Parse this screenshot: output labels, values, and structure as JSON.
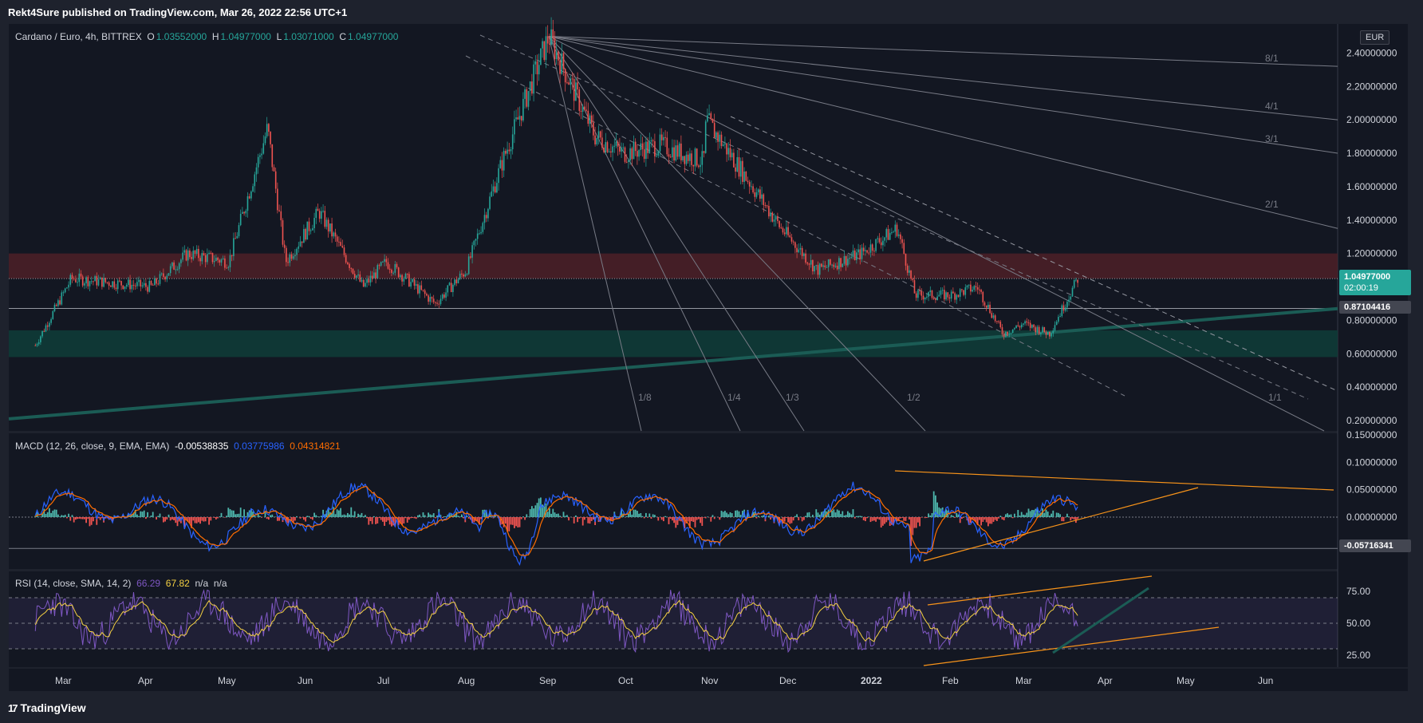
{
  "header": {
    "published_text": "Rekt4Sure published on TradingView.com, Mar 26, 2022 22:56 UTC+1"
  },
  "footer": {
    "logo_text": "TradingView",
    "logo_mark": "17"
  },
  "colors": {
    "background": "#131722",
    "frame": "#1e222d",
    "grid": "#2a2e39",
    "up": "#26a69a",
    "down": "#ef5350",
    "resistance_zone": "#4a1f27",
    "support_zone": "#0f3b37",
    "macd_line": "#2962ff",
    "signal_line": "#ff6d00",
    "rsi_line": "#7e57c2",
    "rsi_ma": "#f5d142",
    "trendline_orange": "#f7931a",
    "long_support_line": "#1b5c55",
    "last_price_tag": "#26a69a"
  },
  "main_legend": {
    "symbol": "Cardano / Euro, 4h, BITTREX",
    "o_label": "O",
    "o_value": "1.03552000",
    "h_label": "H",
    "h_value": "1.04977000",
    "l_label": "L",
    "l_value": "1.03071000",
    "c_label": "C",
    "c_value": "1.04977000"
  },
  "currency_label": "EUR",
  "price_axis": {
    "ticks": [
      "2.40000000",
      "2.20000000",
      "2.00000000",
      "1.80000000",
      "1.60000000",
      "1.40000000",
      "1.20000000",
      "1.00000000",
      "0.80000000",
      "0.60000000",
      "0.40000000",
      "0.20000000"
    ],
    "tick_values": [
      2.4,
      2.2,
      2.0,
      1.8,
      1.6,
      1.4,
      1.2,
      1.0,
      0.8,
      0.6,
      0.4,
      0.2
    ],
    "last_price": "1.04977000",
    "countdown": "02:00:19",
    "level_price": "0.87104416"
  },
  "macd_panel": {
    "legend": "MACD (12, 26, close, 9, EMA, EMA)",
    "hist_value": "-0.00538835",
    "macd_value": "0.03775986",
    "signal_value": "0.04314821",
    "ticks": [
      "0.15000000",
      "0.10000000",
      "0.05000000",
      "0.00000000"
    ],
    "tick_values": [
      0.15,
      0.1,
      0.05,
      0.0
    ],
    "level_tag": "-0.05716341"
  },
  "rsi_panel": {
    "legend": "RSI (14, close, SMA, 14, 2)",
    "rsi_value": "66.29",
    "ma_value": "67.82",
    "na1": "n/a",
    "na2": "n/a",
    "ticks": [
      "75.00",
      "50.00",
      "25.00"
    ],
    "tick_values": [
      75,
      50,
      25
    ]
  },
  "time_axis": {
    "labels": [
      "Mar",
      "Apr",
      "May",
      "Jun",
      "Jul",
      "Aug",
      "Sep",
      "Oct",
      "Nov",
      "Dec",
      "2022",
      "Feb",
      "Mar",
      "Apr",
      "May",
      "Jun"
    ]
  },
  "fan_labels": [
    "1/8",
    "1/4",
    "1/3",
    "1/2",
    "1/1",
    "2/1",
    "3/1",
    "4/1",
    "8/1"
  ],
  "chart_data": {
    "type": "candlestick",
    "title": "Cardano / Euro, 4h, BITTREX",
    "x_range": [
      "2021-02",
      "2022-06"
    ],
    "ylim": [
      0.2,
      2.55
    ],
    "zones": [
      {
        "name": "resistance",
        "from": 1.04977,
        "to": 1.2
      },
      {
        "name": "support",
        "from": 0.58,
        "to": 0.74
      }
    ],
    "price_path_monthly_approx": [
      {
        "date": "2021-02-15",
        "close": 0.65
      },
      {
        "date": "2021-03-01",
        "close": 1.05
      },
      {
        "date": "2021-04-01",
        "close": 1.0
      },
      {
        "date": "2021-04-15",
        "close": 1.2
      },
      {
        "date": "2021-05-01",
        "close": 1.15
      },
      {
        "date": "2021-05-16",
        "close": 1.95
      },
      {
        "date": "2021-05-23",
        "close": 1.15
      },
      {
        "date": "2021-06-05",
        "close": 1.45
      },
      {
        "date": "2021-06-22",
        "close": 1.0
      },
      {
        "date": "2021-07-01",
        "close": 1.15
      },
      {
        "date": "2021-07-20",
        "close": 0.9
      },
      {
        "date": "2021-08-01",
        "close": 1.1
      },
      {
        "date": "2021-08-15",
        "close": 1.75
      },
      {
        "date": "2021-09-02",
        "close": 2.5
      },
      {
        "date": "2021-09-20",
        "close": 1.9
      },
      {
        "date": "2021-10-01",
        "close": 1.8
      },
      {
        "date": "2021-10-15",
        "close": 1.85
      },
      {
        "date": "2021-11-01",
        "close": 1.75
      },
      {
        "date": "2021-11-02",
        "close": 2.0
      },
      {
        "date": "2021-11-20",
        "close": 1.6
      },
      {
        "date": "2021-12-01",
        "close": 1.35
      },
      {
        "date": "2021-12-15",
        "close": 1.1
      },
      {
        "date": "2022-01-01",
        "close": 1.2
      },
      {
        "date": "2022-01-15",
        "close": 1.35
      },
      {
        "date": "2022-01-22",
        "close": 0.95
      },
      {
        "date": "2022-02-05",
        "close": 0.95
      },
      {
        "date": "2022-02-15",
        "close": 1.0
      },
      {
        "date": "2022-02-25",
        "close": 0.72
      },
      {
        "date": "2022-03-05",
        "close": 0.78
      },
      {
        "date": "2022-03-15",
        "close": 0.72
      },
      {
        "date": "2022-03-26",
        "close": 1.04977
      }
    ],
    "indicators": {
      "macd": {
        "macd": 0.03775986,
        "signal": 0.04314821,
        "histogram": -0.00538835
      },
      "rsi": {
        "rsi": 66.29,
        "ma": 67.82
      }
    }
  }
}
